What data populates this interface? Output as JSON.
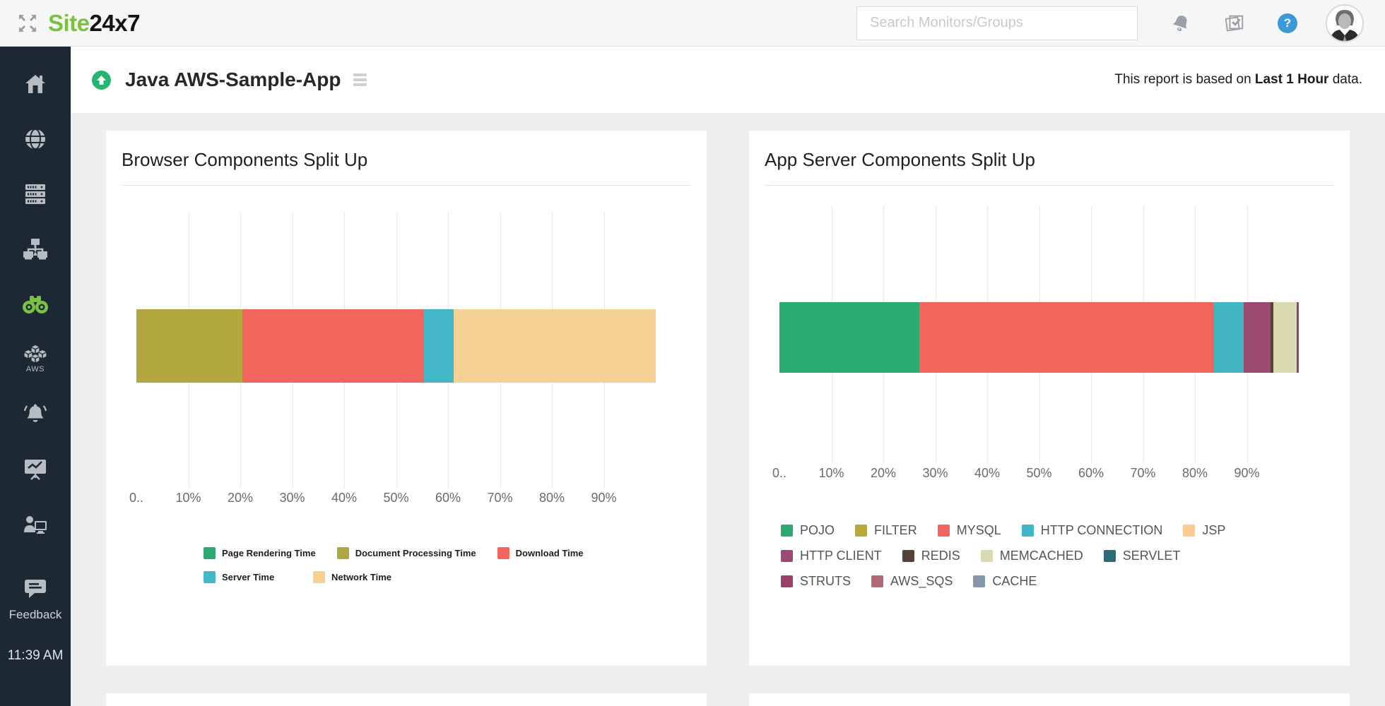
{
  "topbar": {
    "logo_green": "Site",
    "logo_dark": "24x7",
    "search_placeholder": "Search Monitors/Groups",
    "icons": [
      "expand-icon",
      "bell-icon",
      "checklist-icon",
      "help-icon",
      "avatar"
    ],
    "help_glyph": "?",
    "accent_blue": "#3b99d9"
  },
  "sidebar": {
    "background": "#1c2833",
    "active_color": "#7dc142",
    "items": [
      {
        "icon": "home-icon"
      },
      {
        "icon": "globe-icon"
      },
      {
        "icon": "servers-icon"
      },
      {
        "icon": "network-icon"
      },
      {
        "icon": "apm-binoculars-icon",
        "active": true
      },
      {
        "icon": "aws-icon",
        "label": "AWS"
      },
      {
        "icon": "alerts-bell-icon"
      },
      {
        "icon": "reports-icon"
      },
      {
        "icon": "admin-user-icon"
      }
    ],
    "feedback": {
      "icon": "feedback-chat-icon",
      "label": "Feedback"
    },
    "time": "11:39 AM"
  },
  "header": {
    "status": "up",
    "status_color": "#25b571",
    "title": "Java AWS-Sample-App",
    "note_prefix": "This report is based on ",
    "note_bold": "Last 1 Hour",
    "note_suffix": " data."
  },
  "charts": [
    {
      "title": "Browser Components Split Up",
      "chart_data": {
        "type": "bar",
        "subtype": "horizontal-stacked",
        "unit": "percent",
        "xlim": [
          0,
          100
        ],
        "tick_labels": [
          "0..",
          "10%",
          "20%",
          "30%",
          "40%",
          "50%",
          "60%",
          "70%",
          "80%",
          "90%"
        ],
        "grid": true,
        "legend_position": "bottom",
        "series": [
          {
            "name": "Page Rendering Time",
            "value": 0,
            "color": "#2aa876"
          },
          {
            "name": "Document Processing Time",
            "value": 20.4,
            "color": "#b3a73f"
          },
          {
            "name": "Download Time",
            "value": 35.0,
            "color": "#f3655c"
          },
          {
            "name": "Server Time",
            "value": 5.7,
            "color": "#43b7c8"
          },
          {
            "name": "Network Time",
            "value": 38.9,
            "color": "#f6d194"
          }
        ]
      },
      "legend_rows": [
        [
          0,
          1,
          2
        ],
        [
          3,
          4
        ]
      ]
    },
    {
      "title": "App Server Components Split Up",
      "chart_data": {
        "type": "bar",
        "subtype": "horizontal-stacked",
        "unit": "percent",
        "xlim": [
          0,
          100
        ],
        "tick_labels": [
          "0..",
          "10%",
          "20%",
          "30%",
          "40%",
          "50%",
          "60%",
          "70%",
          "80%",
          "90%"
        ],
        "grid": true,
        "legend_position": "bottom",
        "series": [
          {
            "name": "POJO",
            "value": 27.0,
            "color": "#2aab71"
          },
          {
            "name": "FILTER",
            "value": 0,
            "color": "#b8a838"
          },
          {
            "name": "MYSQL",
            "value": 56.7,
            "color": "#f3655c"
          },
          {
            "name": "HTTP CONNECTION",
            "value": 5.7,
            "color": "#42b6c5"
          },
          {
            "name": "JSP",
            "value": 0,
            "color": "#f8cd8f"
          },
          {
            "name": "HTTP CLIENT",
            "value": 5.2,
            "color": "#9d4a72"
          },
          {
            "name": "REDIS",
            "value": 0.5,
            "color": "#55423b"
          },
          {
            "name": "MEMCACHED",
            "value": 4.5,
            "color": "#d8dab2"
          },
          {
            "name": "SERVLET",
            "value": 0,
            "color": "#2e6b77"
          },
          {
            "name": "STRUTS",
            "value": 0.4,
            "color": "#9a3f6b"
          },
          {
            "name": "AWS_SQS",
            "value": 0,
            "color": "#b16877"
          },
          {
            "name": "CACHE",
            "value": 0,
            "color": "#8496a7"
          }
        ]
      },
      "legend_rows": [
        [
          0,
          1,
          2,
          3,
          4
        ],
        [
          5,
          6,
          7,
          8
        ],
        [
          9,
          10,
          11
        ]
      ]
    }
  ]
}
